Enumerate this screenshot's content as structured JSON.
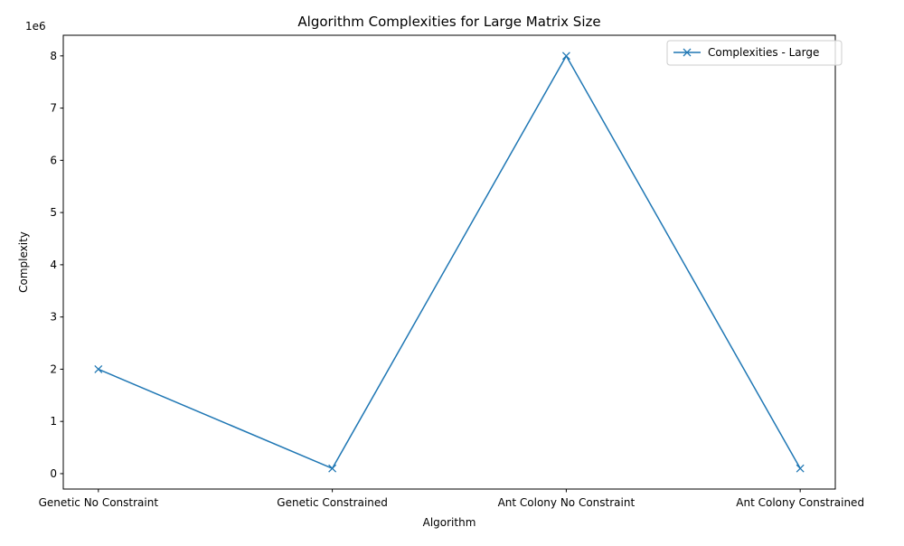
{
  "chart_data": {
    "type": "line",
    "title": "Algorithm Complexities for Large Matrix Size",
    "xlabel": "Algorithm",
    "ylabel": "Complexity",
    "y_offset_text": "1e6",
    "categories": [
      "Genetic No Constraint",
      "Genetic Constrained",
      "Ant Colony No Constraint",
      "Ant Colony Constrained"
    ],
    "series": [
      {
        "name": "Complexities - Large",
        "values": [
          2000000,
          100000,
          8000000,
          100000
        ],
        "color": "#1f77b4",
        "marker": "x"
      }
    ],
    "y_ticks": [
      0,
      1000000,
      2000000,
      3000000,
      4000000,
      5000000,
      6000000,
      7000000,
      8000000
    ],
    "y_tick_labels": [
      "0",
      "1",
      "2",
      "3",
      "4",
      "5",
      "6",
      "7",
      "8"
    ],
    "ylim": [
      -295000,
      8395000
    ],
    "grid": false,
    "legend_position": "top-right"
  }
}
